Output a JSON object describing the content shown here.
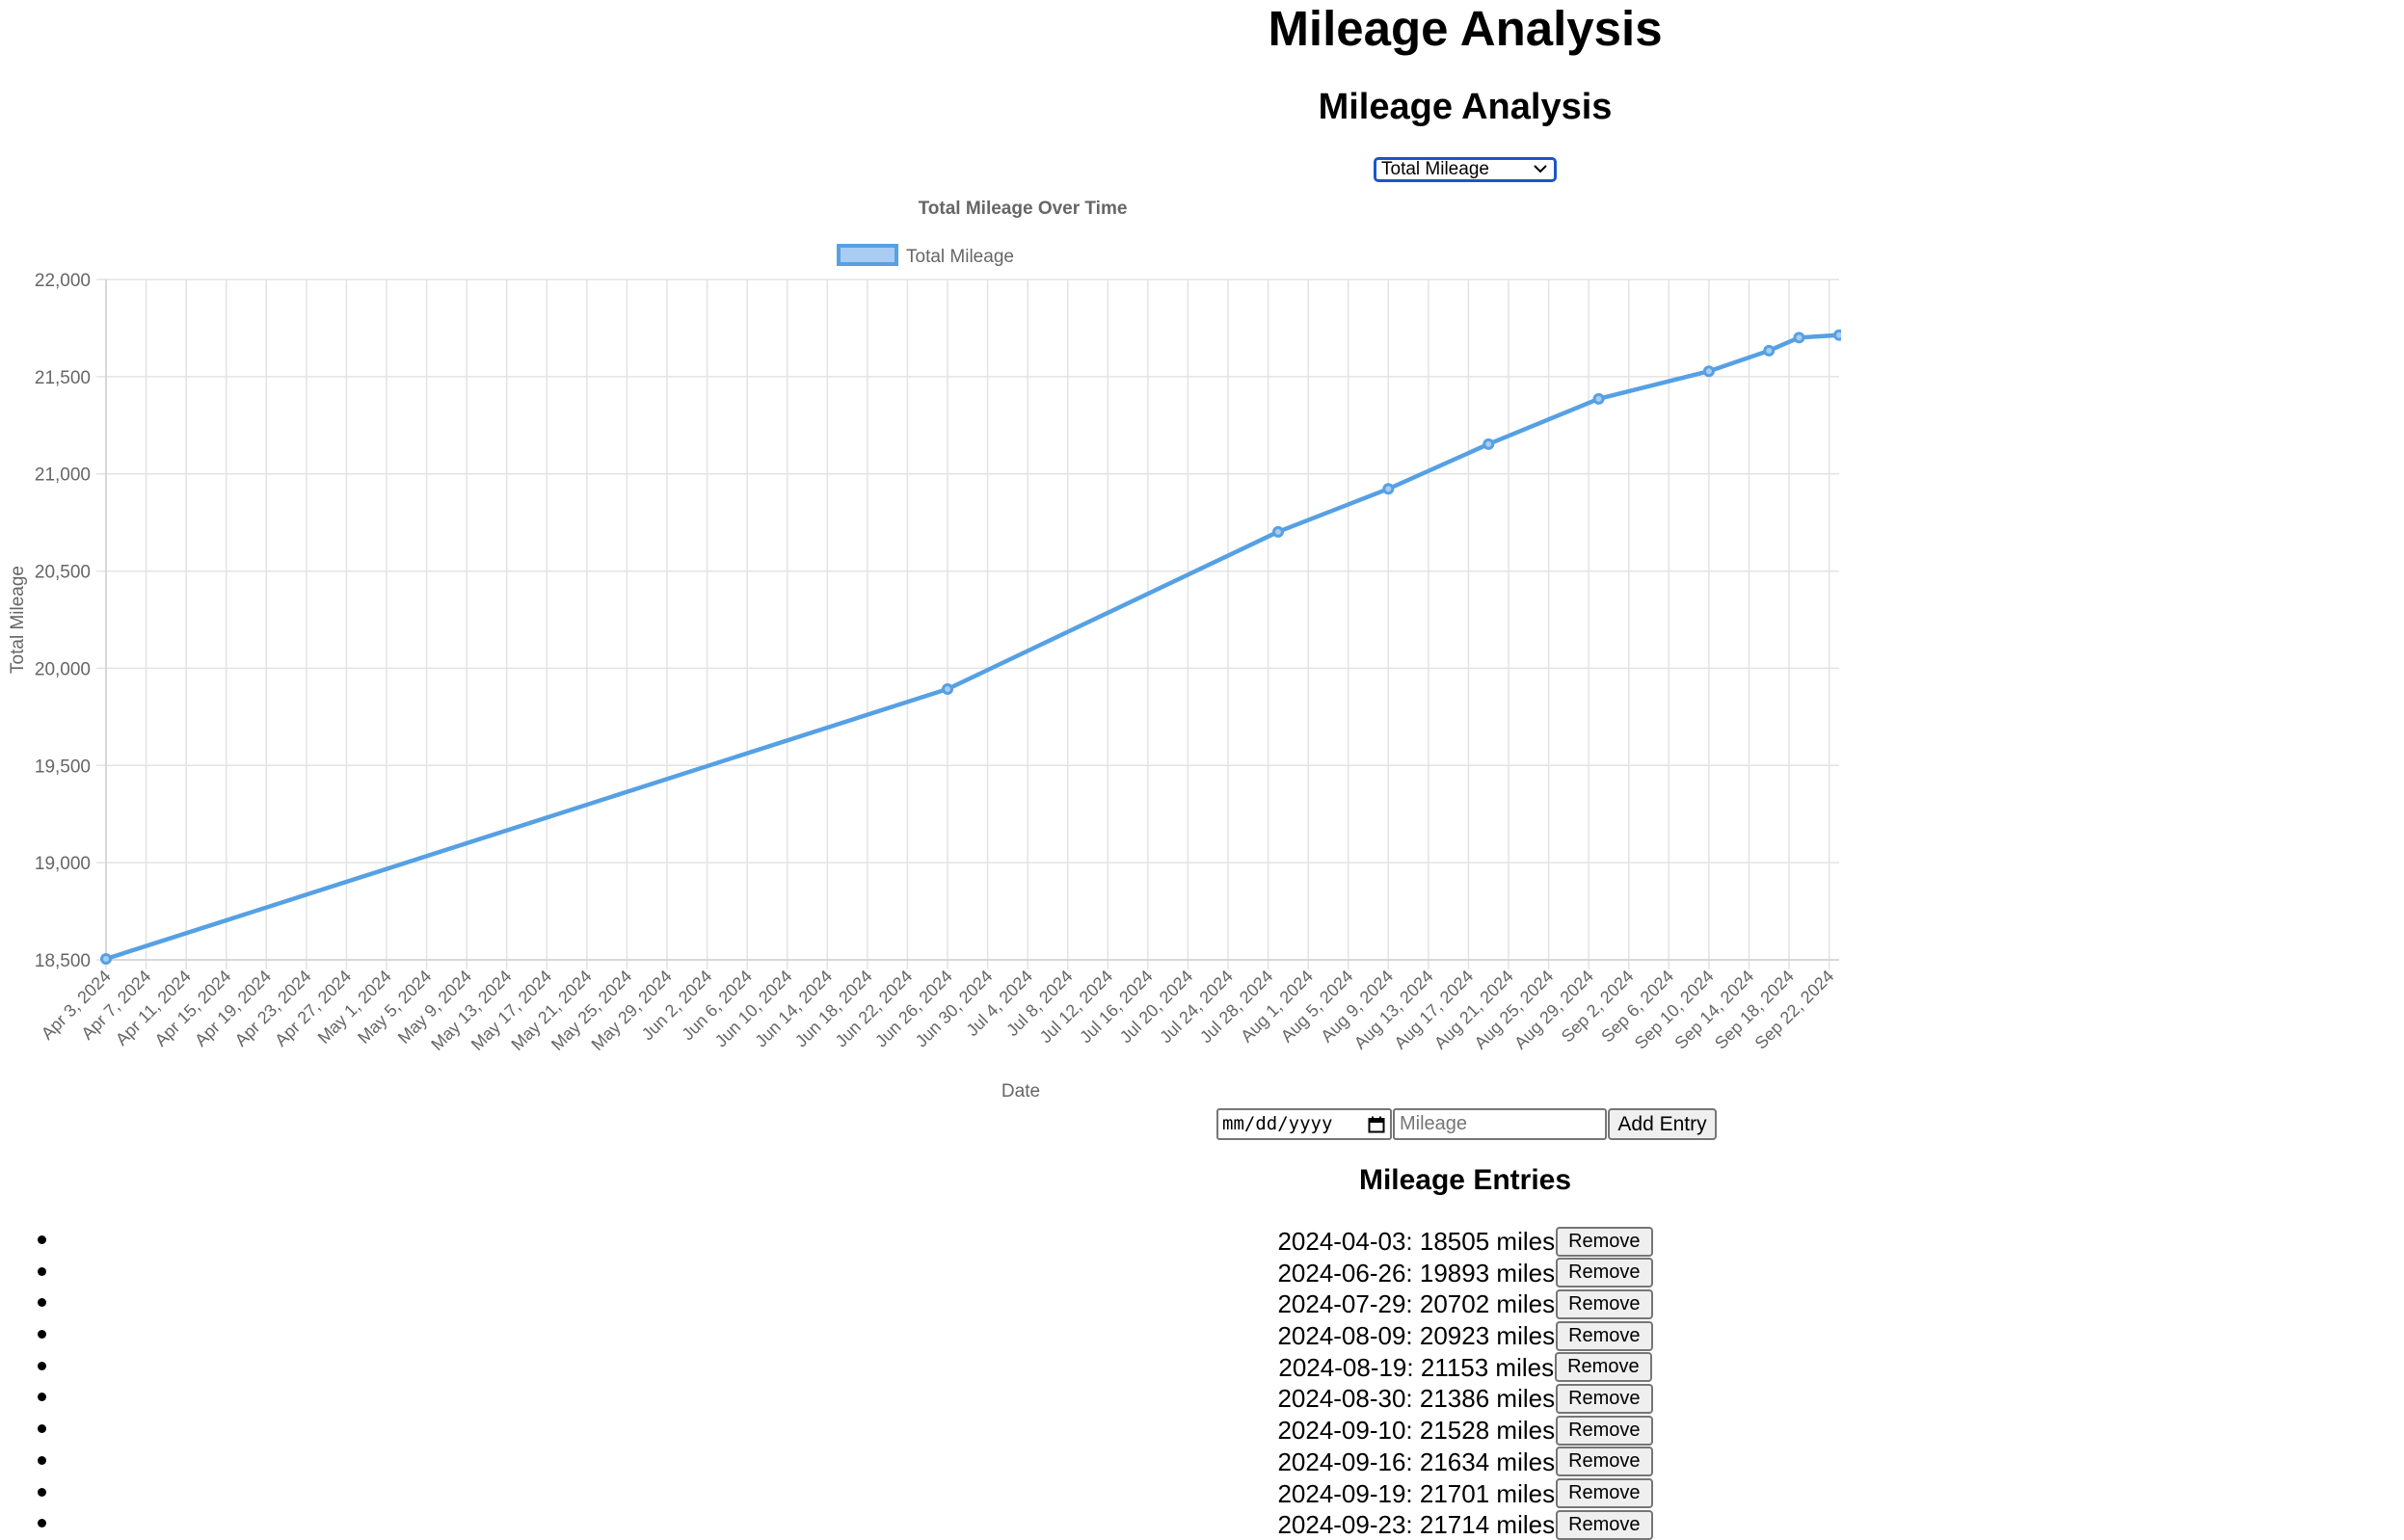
{
  "page": {
    "title": "Mileage Analysis",
    "section_title": "Mileage Analysis",
    "metric_select": {
      "selected": "Total Mileage",
      "icon": "chevron-down-icon"
    }
  },
  "chart_data": {
    "type": "line",
    "title": "Total Mileage Over Time",
    "xlabel": "Date",
    "ylabel": "Total Mileage",
    "x_axis": "time",
    "x_range": [
      "2024-04-03",
      "2024-09-23"
    ],
    "x_ticks": [
      "Apr 3, 2024",
      "Apr 7, 2024",
      "Apr 11, 2024",
      "Apr 15, 2024",
      "Apr 19, 2024",
      "Apr 23, 2024",
      "Apr 27, 2024",
      "May 1, 2024",
      "May 5, 2024",
      "May 9, 2024",
      "May 13, 2024",
      "May 17, 2024",
      "May 21, 2024",
      "May 25, 2024",
      "May 29, 2024",
      "Jun 2, 2024",
      "Jun 6, 2024",
      "Jun 10, 2024",
      "Jun 14, 2024",
      "Jun 18, 2024",
      "Jun 22, 2024",
      "Jun 26, 2024",
      "Jun 30, 2024",
      "Jul 4, 2024",
      "Jul 8, 2024",
      "Jul 12, 2024",
      "Jul 16, 2024",
      "Jul 20, 2024",
      "Jul 24, 2024",
      "Jul 28, 2024",
      "Aug 1, 2024",
      "Aug 5, 2024",
      "Aug 9, 2024",
      "Aug 13, 2024",
      "Aug 17, 2024",
      "Aug 21, 2024",
      "Aug 25, 2024",
      "Aug 29, 2024",
      "Sep 2, 2024",
      "Sep 6, 2024",
      "Sep 10, 2024",
      "Sep 14, 2024",
      "Sep 18, 2024",
      "Sep 22, 2024"
    ],
    "ylim": [
      18500,
      22000
    ],
    "y_ticks": [
      "22,000",
      "21,500",
      "21,000",
      "20,500",
      "20,000",
      "19,500",
      "19,000",
      "18,500"
    ],
    "grid": true,
    "legend_position": "top",
    "series": [
      {
        "name": "Total Mileage",
        "color": "#56a0e4",
        "fill": "#a9cdf2",
        "x": [
          "2024-04-03",
          "2024-06-26",
          "2024-07-29",
          "2024-08-09",
          "2024-08-19",
          "2024-08-30",
          "2024-09-10",
          "2024-09-16",
          "2024-09-19",
          "2024-09-23"
        ],
        "y": [
          18505,
          19893,
          20702,
          20923,
          21153,
          21386,
          21528,
          21634,
          21701,
          21714
        ]
      }
    ]
  },
  "form": {
    "date_placeholder": "mm/dd/yyyy",
    "mileage_placeholder": "Mileage",
    "add_label": "Add Entry",
    "calendar_icon": "calendar-icon"
  },
  "entries": {
    "title": "Mileage Entries",
    "remove_label": "Remove",
    "items": [
      "2024-04-03: 18505 miles",
      "2024-06-26: 19893 miles",
      "2024-07-29: 20702 miles",
      "2024-08-09: 20923 miles",
      "2024-08-19: 21153 miles",
      "2024-08-30: 21386 miles",
      "2024-09-10: 21528 miles",
      "2024-09-16: 21634 miles",
      "2024-09-19: 21701 miles",
      "2024-09-23: 21714 miles"
    ]
  }
}
